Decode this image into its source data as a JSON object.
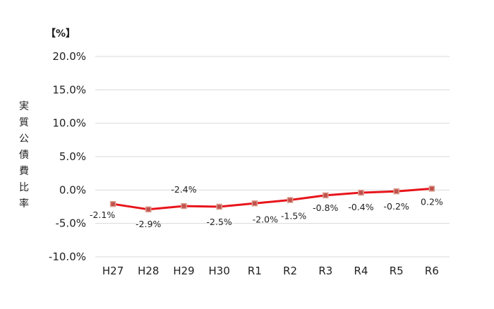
{
  "chart_data": {
    "type": "line",
    "title": "",
    "unit_label": "【%】",
    "ylabel": "実質公債費比率",
    "xlabel": "",
    "categories": [
      "H27",
      "H28",
      "H29",
      "H30",
      "R1",
      "R2",
      "R3",
      "R4",
      "R5",
      "R6"
    ],
    "series": [
      {
        "values": [
          -2.1,
          -2.9,
          -2.4,
          -2.5,
          -2.0,
          -1.5,
          -0.8,
          -0.4,
          -0.2,
          0.2
        ],
        "data_labels": [
          "-2.1%",
          "-2.9%",
          "-2.4%",
          "-2.5%",
          "-2.0%",
          "-1.5%",
          "-0.8%",
          "-0.4%",
          "-0.2%",
          "0.2%"
        ],
        "line_color": "#e8141b",
        "marker_color": "#c0504d",
        "marker_edge_color": "#d9a08f"
      }
    ],
    "ylim": [
      -10,
      20
    ],
    "yticks": [
      -10,
      -5,
      0,
      5,
      10,
      15,
      20
    ],
    "ytick_labels": [
      "-10.0%",
      "-5.0%",
      "0.0%",
      "5.0%",
      "10.0%",
      "15.0%",
      "20.0%"
    ],
    "grid": true,
    "gridline_color": "#d9d9d9",
    "legend": "none"
  }
}
